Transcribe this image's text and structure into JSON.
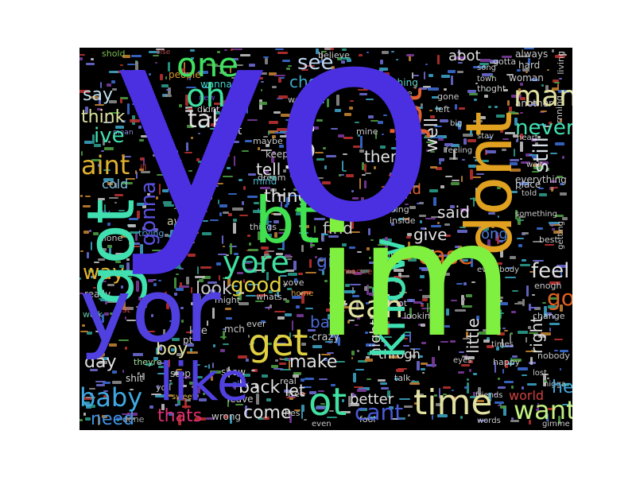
{
  "figure": {
    "background_color": "#ffffff",
    "canvas_color": "#000000"
  },
  "words": {
    "w1": "yo",
    "w2": "im",
    "w3": "yor",
    "w4": "dont",
    "w5": "like",
    "w6": "got",
    "w7": "bt",
    "w8": "know",
    "w9": "love",
    "w10": "jst",
    "w11": "time",
    "w12": "get",
    "w13": "yore",
    "w14": "one",
    "w15": "oh",
    "w16": "ot",
    "w17": "baby",
    "w18": "want",
    "w19": "cant",
    "w20": "aint",
    "w21": "man",
    "w22": "yeah",
    "w23": "case",
    "w24": "way",
    "w25": "go",
    "w26": "gonna",
    "w27": "say",
    "w28": "think",
    "w29": "ive",
    "w30": "see",
    "w31": "chors",
    "w32": "take",
    "w33": "never",
    "w34": "still",
    "w35": "tell",
    "w36": "feel",
    "w37": "good",
    "w38": "make",
    "w39": "back",
    "w40": "bad",
    "w41": "girl",
    "w42": "give",
    "w43": "said",
    "w44": "let",
    "w45": "better",
    "w46": "thats",
    "w47": "come",
    "w48": "day",
    "w49": "need",
    "w50": "hey",
    "w51": "world",
    "w52": "little",
    "w53": "right",
    "w54": "nothing",
    "w55": "mind",
    "w56": "keep",
    "w57": "theres",
    "w58": "arond",
    "w59": "well",
    "w60": "wont",
    "w61": "cold",
    "w62": "look",
    "w63": "ever",
    "w64": "live",
    "w65": "boy",
    "w66": "stop",
    "w67": "crazy",
    "w68": "throgh",
    "w69": "night",
    "w70": "thing",
    "w71": "find",
    "w72": "long",
    "w73": "everything",
    "w74": "people",
    "w75": "wanna",
    "w76": "abot",
    "w77": "always",
    "w78": "hard",
    "w79": "woman",
    "w80": "believe",
    "w81": "another",
    "w82": "gone",
    "w83": "place",
    "w84": "told",
    "w85": "something",
    "w86": "best",
    "w87": "enogh",
    "w88": "everybody",
    "w89": "someone",
    "w90": "whats",
    "w91": "yove",
    "w92": "home",
    "w93": "might",
    "w94": "really",
    "w95": "talk",
    "w96": "times",
    "w97": "happy",
    "w98": "nobody",
    "w99": "change",
    "w100": "maybe",
    "w101": "work",
    "w102": "didnt",
    "w103": "shes",
    "w104": "dream",
    "w105": "alone",
    "w106": "trying",
    "w107": "away",
    "w108": "going",
    "w109": "inside",
    "w110": "feeling",
    "w111": "friends",
    "w112": "lot",
    "w113": "looking",
    "w114": "real",
    "w115": "free",
    "w116": "sometimes",
    "w117": "thoght",
    "w118": "living",
    "w119": "song",
    "w120": "gotta",
    "w121": "mine",
    "w122": "shold",
    "w123": "fine",
    "w124": "left",
    "w125": "town",
    "w126": "show",
    "w127": "play",
    "w128": "wrong",
    "w129": "leave",
    "w130": "fool",
    "w131": "done",
    "w132": "sweet",
    "w133": "shit",
    "w134": "yoll",
    "w135": "theyre",
    "w136": "things",
    "w137": "new",
    "w138": "old",
    "w139": "else",
    "w140": "hes",
    "w141": "heart",
    "w142": "try",
    "w143": "stay",
    "w144": "mch",
    "w145": "pt",
    "w146": "big",
    "w147": "ya",
    "w148": "wait",
    "w149": "ill",
    "w150": "mean",
    "w151": "walk",
    "w152": "last",
    "w153": "lost",
    "w154": "gimme",
    "w155": "nigga",
    "w156": "words",
    "w157": "eyes",
    "w158": "even",
    "w159": "rnning",
    "w160": "getting"
  }
}
